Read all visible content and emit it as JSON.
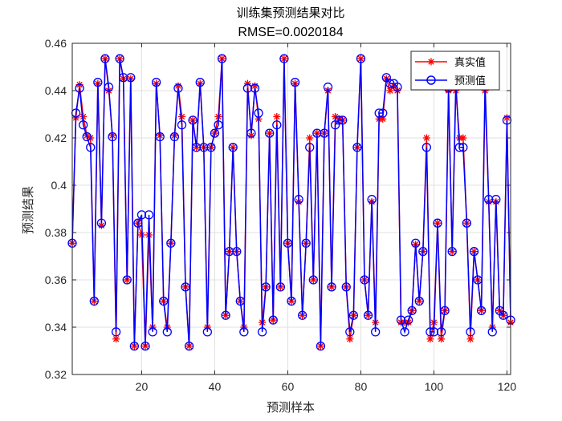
{
  "chart_data": {
    "type": "line",
    "title": "训练集预测结果对比",
    "subtitle": "RMSE=0.0020184",
    "xlabel": "预测样本",
    "ylabel": "预测结果",
    "xlim": [
      1,
      121
    ],
    "ylim": [
      0.32,
      0.46
    ],
    "xticks": [
      20,
      40,
      60,
      80,
      100,
      120
    ],
    "yticks": [
      0.32,
      0.34,
      0.36,
      0.38,
      0.4,
      0.42,
      0.44,
      0.46
    ],
    "ytick_labels": [
      "0.32",
      "0.34",
      "0.36",
      "0.38",
      "0.4",
      "0.42",
      "0.44",
      "0.46"
    ],
    "grid": true,
    "legend_position": "top-right",
    "series": [
      {
        "name": "真实值",
        "color": "#ff0000",
        "marker": "asterisk",
        "values": [
          0.3755,
          0.4285,
          0.4425,
          0.429,
          0.421,
          0.42,
          0.351,
          0.443,
          0.383,
          0.4535,
          0.44,
          0.421,
          0.335,
          0.4535,
          0.445,
          0.36,
          0.445,
          0.332,
          0.384,
          0.379,
          0.332,
          0.379,
          0.34,
          0.443,
          0.421,
          0.351,
          0.34,
          0.3755,
          0.421,
          0.442,
          0.429,
          0.357,
          0.332,
          0.4275,
          0.416,
          0.443,
          0.416,
          0.34,
          0.416,
          0.422,
          0.429,
          0.4535,
          0.345,
          0.372,
          0.416,
          0.372,
          0.351,
          0.34,
          0.443,
          0.421,
          0.442,
          0.428,
          0.342,
          0.357,
          0.422,
          0.343,
          0.429,
          0.357,
          0.4535,
          0.3755,
          0.351,
          0.443,
          0.393,
          0.345,
          0.3755,
          0.42,
          0.36,
          0.422,
          0.332,
          0.422,
          0.44,
          0.357,
          0.429,
          0.428,
          0.4275,
          0.357,
          0.335,
          0.345,
          0.416,
          0.4535,
          0.36,
          0.345,
          0.393,
          0.342,
          0.428,
          0.428,
          0.445,
          0.44,
          0.442,
          0.44,
          0.342,
          0.342,
          0.342,
          0.347,
          0.375,
          0.351,
          0.372,
          0.42,
          0.335,
          0.342,
          0.384,
          0.335,
          0.347,
          0.44,
          0.372,
          0.44,
          0.42,
          0.42,
          0.384,
          0.335,
          0.372,
          0.36,
          0.347,
          0.44,
          0.393,
          0.34,
          0.393,
          0.347,
          0.345,
          0.4285,
          0.342
        ]
      },
      {
        "name": "预测值",
        "color": "#0000ff",
        "marker": "circle",
        "values": [
          0.3755,
          0.4305,
          0.441,
          0.4255,
          0.4205,
          0.416,
          0.351,
          0.4435,
          0.384,
          0.4535,
          0.4415,
          0.4205,
          0.338,
          0.4535,
          0.4455,
          0.36,
          0.4455,
          0.332,
          0.384,
          0.3875,
          0.332,
          0.3875,
          0.338,
          0.4435,
          0.4205,
          0.351,
          0.338,
          0.3755,
          0.4205,
          0.441,
          0.4255,
          0.357,
          0.332,
          0.4275,
          0.416,
          0.4435,
          0.416,
          0.338,
          0.416,
          0.422,
          0.4255,
          0.4535,
          0.345,
          0.372,
          0.416,
          0.372,
          0.351,
          0.338,
          0.441,
          0.422,
          0.441,
          0.4305,
          0.338,
          0.357,
          0.422,
          0.343,
          0.4255,
          0.357,
          0.4535,
          0.3755,
          0.351,
          0.4435,
          0.394,
          0.345,
          0.3755,
          0.416,
          0.36,
          0.422,
          0.332,
          0.422,
          0.4415,
          0.357,
          0.4255,
          0.4275,
          0.4275,
          0.357,
          0.338,
          0.345,
          0.416,
          0.4535,
          0.36,
          0.345,
          0.394,
          0.338,
          0.4305,
          0.4305,
          0.4455,
          0.443,
          0.443,
          0.4415,
          0.343,
          0.338,
          0.343,
          0.347,
          0.3755,
          0.351,
          0.372,
          0.416,
          0.338,
          0.338,
          0.384,
          0.338,
          0.347,
          0.441,
          0.372,
          0.4435,
          0.416,
          0.416,
          0.384,
          0.338,
          0.372,
          0.36,
          0.347,
          0.4435,
          0.394,
          0.338,
          0.394,
          0.347,
          0.345,
          0.4275,
          0.343
        ]
      }
    ]
  }
}
